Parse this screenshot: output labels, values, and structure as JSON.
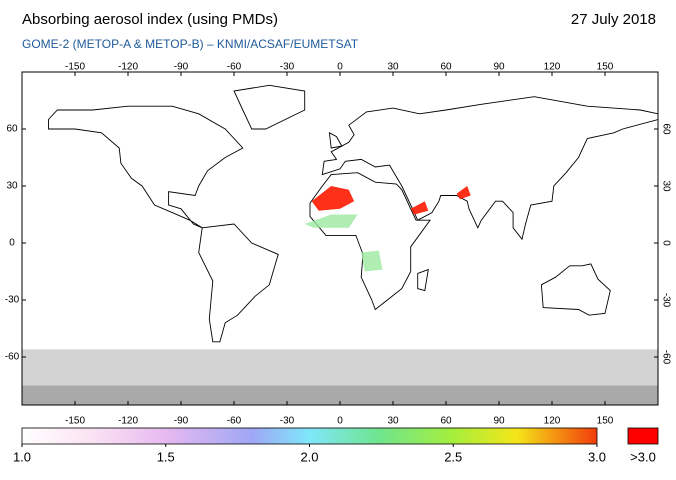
{
  "header": {
    "title": "Absorbing aerosol index (using PMDs)",
    "date": "27 July 2018",
    "subtitle": "GOME-2 (METOP-A & METOP-B)  –  KNMI/ACSAF/EUMETSAT"
  },
  "map": {
    "lon_ticks": [
      -150,
      -120,
      -90,
      -60,
      -30,
      0,
      30,
      60,
      90,
      120,
      150
    ],
    "lat_ticks": [
      60,
      30,
      0,
      -30,
      -60
    ]
  },
  "colorbar": {
    "range": [
      1,
      3
    ],
    "ticks": [
      {
        "value": 1,
        "label": "1.0"
      },
      {
        "value": 1.5,
        "label": "1.5"
      },
      {
        "value": 2,
        "label": "2.0"
      },
      {
        "value": 2.5,
        "label": "2.5"
      },
      {
        "value": 3,
        "label": "3.0"
      }
    ],
    "overflow_label": ">3.0"
  }
}
